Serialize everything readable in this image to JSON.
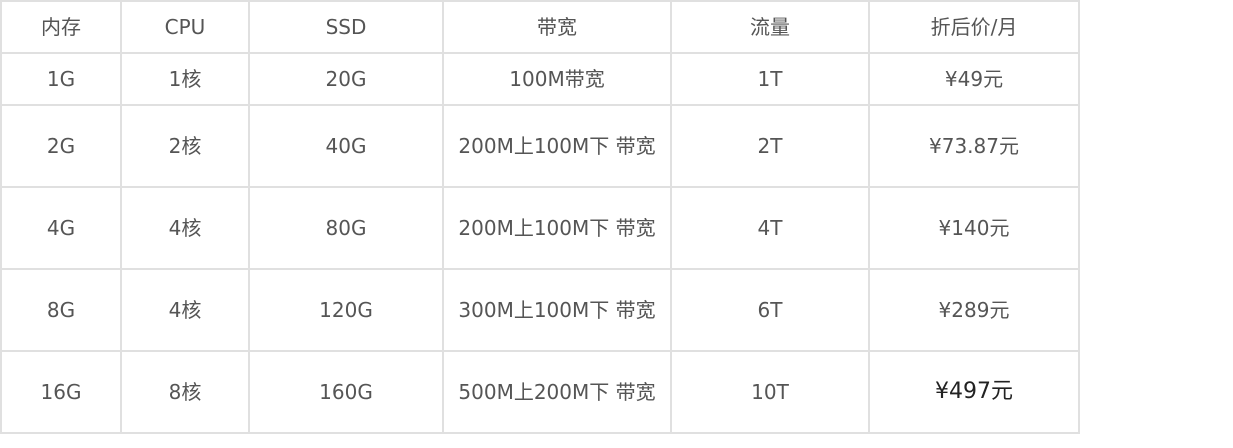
{
  "headers": [
    "内存",
    "CPU",
    "SSD",
    "带宽",
    "流量",
    "折后价/月"
  ],
  "rows": [
    [
      "1G",
      "1核",
      "20G",
      "100M带宽",
      "1T",
      "¥49元"
    ],
    [
      "2G",
      "2核",
      "40G",
      "200M上100M下 带宽",
      "2T",
      "¥73.87元"
    ],
    [
      "4G",
      "4核",
      "80G",
      "200M上100M下 带宽",
      "4T",
      "¥140元"
    ],
    [
      "8G",
      "4核",
      "120G",
      "300M上100M下 带宽",
      "6T",
      "¥289元"
    ],
    [
      "16G",
      "8核",
      "160G",
      "500M上200M下 带宽",
      "10T",
      "¥497元"
    ]
  ]
}
